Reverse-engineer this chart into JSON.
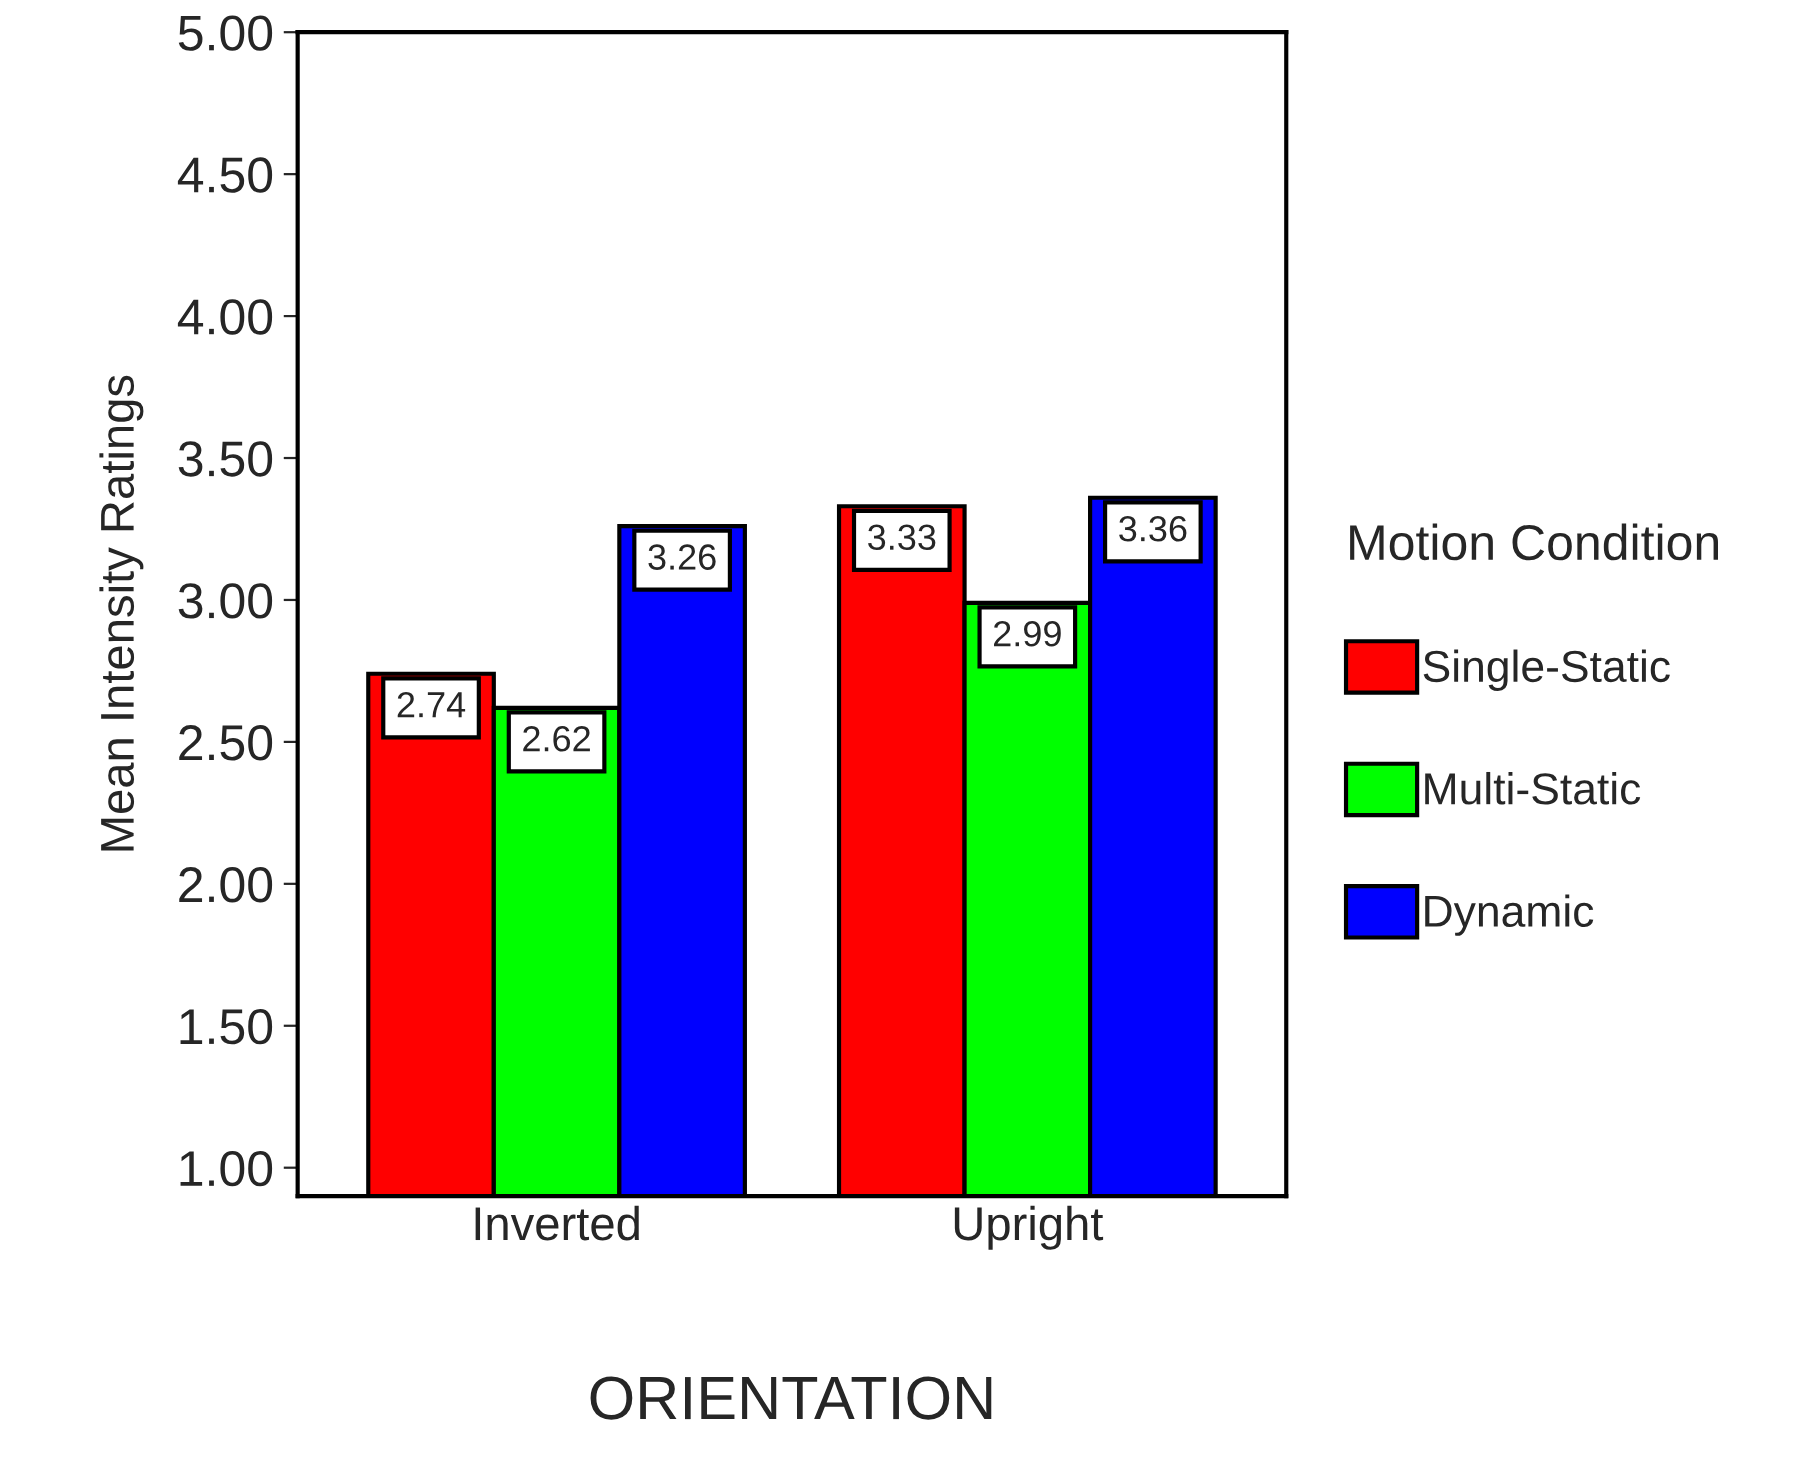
{
  "chart_data": {
    "type": "bar",
    "xlabel": "ORIENTATION",
    "ylabel": "Mean Intensity Ratings",
    "legend_title": "Motion Condition",
    "categories": [
      "Inverted",
      "Upright"
    ],
    "series": [
      {
        "name": "Single-Static",
        "color": "#ff0000",
        "values": [
          2.74,
          3.33
        ]
      },
      {
        "name": "Multi-Static",
        "color": "#00ff00",
        "values": [
          2.62,
          2.99
        ]
      },
      {
        "name": "Dynamic",
        "color": "#0000ff",
        "values": [
          3.26,
          3.36
        ]
      }
    ],
    "ylim": [
      0.9,
      5.0
    ],
    "yticks": [
      {
        "value": 1,
        "label": "1.00"
      },
      {
        "value": 1.5,
        "label": "1.50"
      },
      {
        "value": 2,
        "label": "2.00"
      },
      {
        "value": 2.5,
        "label": "2.50"
      },
      {
        "value": 3,
        "label": "3.00"
      },
      {
        "value": 3.5,
        "label": "3.50"
      },
      {
        "value": 4,
        "label": "4.00"
      },
      {
        "value": 4.5,
        "label": "4.50"
      },
      {
        "value": 5,
        "label": "5.00"
      }
    ],
    "data_labels": true,
    "legend": "right",
    "grid": false
  }
}
